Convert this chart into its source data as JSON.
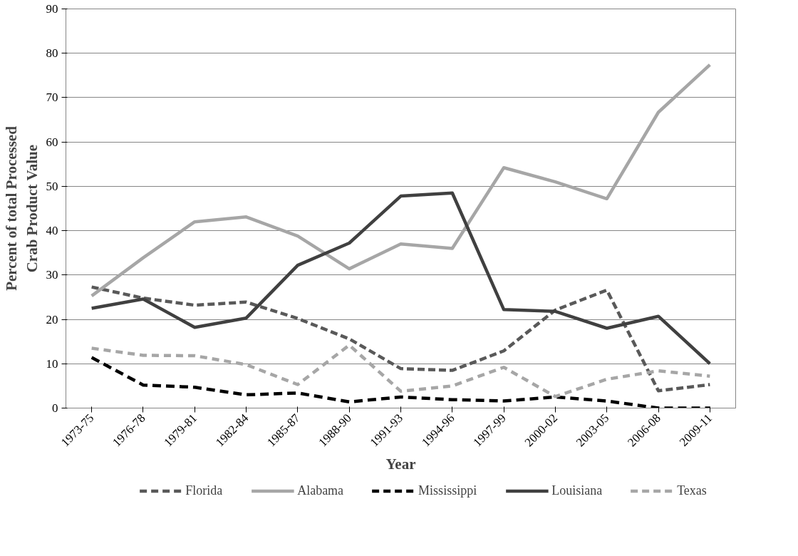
{
  "chart_data": {
    "type": "line",
    "xlabel": "Year",
    "ylabel": "Percent of total Processed Crab Product Value",
    "categories": [
      "1973-75",
      "1976-78",
      "1979-81",
      "1982-84",
      "1985-87",
      "1988-90",
      "1991-93",
      "1994-96",
      "1997-99",
      "2000-02",
      "2003-05",
      "2006-08",
      "2009-11"
    ],
    "ylim": [
      0,
      90
    ],
    "yticks": [
      0,
      10,
      20,
      30,
      40,
      50,
      60,
      70,
      80,
      90
    ],
    "grid": "y",
    "legend": "bottom",
    "marker": "none",
    "series": [
      {
        "name": "Florida",
        "color": "#595959",
        "line_style": "dashed",
        "values": [
          27.3,
          24.8,
          23.2,
          23.9,
          20.2,
          15.6,
          8.9,
          8.5,
          12.9,
          22.1,
          26.6,
          3.9,
          5.3
        ]
      },
      {
        "name": "Alabama",
        "color": "#a6a6a6",
        "line_style": "solid",
        "values": [
          25.3,
          33.9,
          42.0,
          43.1,
          38.8,
          31.4,
          37.0,
          36.0,
          54.2,
          51.0,
          47.2,
          66.7,
          77.4
        ]
      },
      {
        "name": "Mississippi",
        "color": "#000000",
        "line_style": "dashed",
        "values": [
          11.4,
          5.2,
          4.7,
          3.0,
          3.4,
          1.4,
          2.5,
          1.9,
          1.6,
          2.5,
          1.6,
          0,
          0
        ]
      },
      {
        "name": "Louisiana",
        "color": "#404040",
        "line_style": "solid",
        "values": [
          22.5,
          24.6,
          18.2,
          20.3,
          32.2,
          37.2,
          47.8,
          48.5,
          22.2,
          21.8,
          18.0,
          20.7,
          10.0
        ]
      },
      {
        "name": "Texas",
        "color": "#a6a6a6",
        "line_style": "dashed",
        "values": [
          13.5,
          11.9,
          11.8,
          9.8,
          5.3,
          14.2,
          3.8,
          5.0,
          9.2,
          2.6,
          6.5,
          8.4,
          7.2
        ]
      }
    ]
  }
}
